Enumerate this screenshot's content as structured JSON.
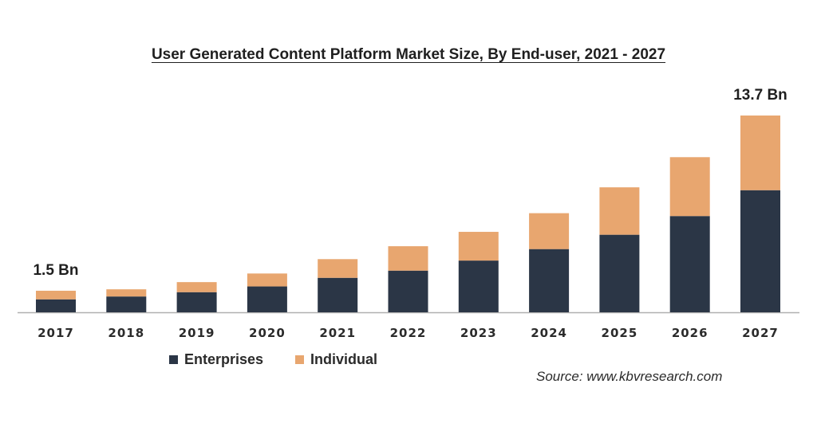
{
  "colors": {
    "enterprises": "#2b3646",
    "individual": "#e8a66f",
    "axis": "#b0b0b0"
  },
  "source": "Source: www.kbvresearch.com",
  "chart_data": {
    "type": "bar",
    "stacked": true,
    "title": "User Generated Content Platform Market Size, By End-user, 2021 - 2027",
    "categories": [
      "2017",
      "2018",
      "2019",
      "2020",
      "2021",
      "2022",
      "2023",
      "2024",
      "2025",
      "2026",
      "2027"
    ],
    "series": [
      {
        "name": "Enterprises",
        "values": [
          0.9,
          1.1,
          1.4,
          1.8,
          2.4,
          2.9,
          3.6,
          4.4,
          5.4,
          6.7,
          8.5
        ]
      },
      {
        "name": "Individual",
        "values": [
          0.6,
          0.5,
          0.7,
          0.9,
          1.3,
          1.7,
          2.0,
          2.5,
          3.3,
          4.1,
          5.2
        ]
      }
    ],
    "total_labels": [
      {
        "category": "2017",
        "text": "1.5 Bn"
      },
      {
        "category": "2027",
        "text": "13.7 Bn"
      }
    ],
    "ylim": [
      0,
      13.7
    ],
    "grid": false,
    "legend": "bottom-left"
  }
}
